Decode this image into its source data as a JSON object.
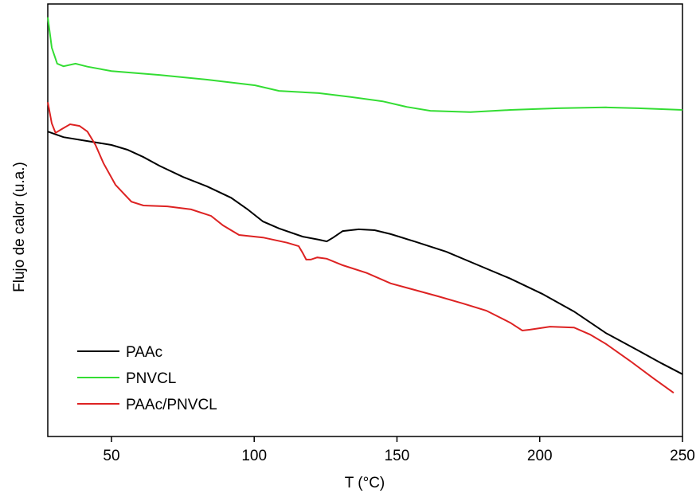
{
  "chart_data": {
    "type": "line",
    "xlabel": "T (°C)",
    "ylabel": "Flujo de calor (u.a.)",
    "xlim": [
      27.7,
      250
    ],
    "xticks": [
      50,
      100,
      150,
      200,
      250
    ],
    "ylim": [
      0,
      100
    ],
    "legend": "lower left",
    "series": [
      {
        "name": "PAAc",
        "color": "#000000",
        "x": [
          27.7,
          33.2,
          41.6,
          50,
          55.6,
          61.2,
          66.8,
          75.1,
          83.5,
          91.9,
          97.5,
          103.1,
          108.7,
          117.0,
          122.6,
          125.4,
          127.7,
          131.0,
          136.6,
          142.2,
          147.8,
          156.1,
          167.3,
          178.5,
          189.7,
          200.8,
          212.0,
          223.2,
          234.4,
          242.7,
          250
        ],
        "values": [
          70.5,
          69.2,
          68.3,
          67.4,
          66.3,
          64.6,
          62.6,
          60.0,
          57.8,
          55.2,
          52.6,
          49.7,
          48.1,
          46.2,
          45.5,
          45.1,
          46.0,
          47.5,
          47.9,
          47.7,
          46.8,
          45.1,
          42.7,
          39.6,
          36.5,
          33.0,
          28.9,
          23.9,
          19.9,
          16.9,
          14.4
        ]
      },
      {
        "name": "PNVCL",
        "color": "#33dd33",
        "x": [
          27.7,
          29.1,
          31.0,
          33.2,
          37.4,
          41.6,
          50,
          66.8,
          83.5,
          100.3,
          108.7,
          122.6,
          133.8,
          145.0,
          153.4,
          161.7,
          175.7,
          189.7,
          206.4,
          223.2,
          234.4,
          250
        ],
        "values": [
          96.9,
          89.9,
          86.2,
          85.6,
          86.2,
          85.5,
          84.5,
          83.6,
          82.5,
          81.2,
          79.9,
          79.4,
          78.5,
          77.5,
          76.2,
          75.3,
          75.0,
          75.5,
          75.9,
          76.1,
          75.9,
          75.5
        ]
      },
      {
        "name": "PAAc/PNVCL",
        "color": "#dd2222",
        "x": [
          27.7,
          29.1,
          30.4,
          32.7,
          35.5,
          38.8,
          41.6,
          44.4,
          47.2,
          51.4,
          57.0,
          61.2,
          69.6,
          77.9,
          84.9,
          89.1,
          94.7,
          103.1,
          111.5,
          115.6,
          117.0,
          118.2,
          119.8,
          122.1,
          125.4,
          131.0,
          139.4,
          147.8,
          156.1,
          164.5,
          172.9,
          181.3,
          189.7,
          193.9,
          196.6,
          203.6,
          212.0,
          217.6,
          223.2,
          231.6,
          239.9,
          246.9
        ],
        "values": [
          77.3,
          72.4,
          70.2,
          71.1,
          72.2,
          71.8,
          70.5,
          67.4,
          63.2,
          58.2,
          54.3,
          53.4,
          53.2,
          52.5,
          51.0,
          48.8,
          46.6,
          46.0,
          44.8,
          44.0,
          42.4,
          40.9,
          40.9,
          41.4,
          41.1,
          39.6,
          37.8,
          35.4,
          33.9,
          32.4,
          30.8,
          29.1,
          26.3,
          24.5,
          24.7,
          25.4,
          25.2,
          23.6,
          21.4,
          17.5,
          13.4,
          10.1
        ]
      }
    ]
  }
}
